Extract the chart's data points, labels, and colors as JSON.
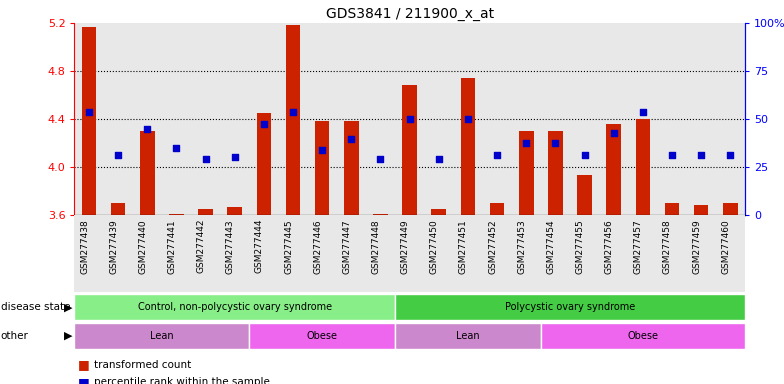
{
  "title": "GDS3841 / 211900_x_at",
  "samples": [
    "GSM277438",
    "GSM277439",
    "GSM277440",
    "GSM277441",
    "GSM277442",
    "GSM277443",
    "GSM277444",
    "GSM277445",
    "GSM277446",
    "GSM277447",
    "GSM277448",
    "GSM277449",
    "GSM277450",
    "GSM277451",
    "GSM277452",
    "GSM277453",
    "GSM277454",
    "GSM277455",
    "GSM277456",
    "GSM277457",
    "GSM277458",
    "GSM277459",
    "GSM277460"
  ],
  "bar_values": [
    5.17,
    3.7,
    4.3,
    3.61,
    3.65,
    3.67,
    4.45,
    5.18,
    4.38,
    4.38,
    3.61,
    4.68,
    3.65,
    4.74,
    3.7,
    4.3,
    4.3,
    3.93,
    4.36,
    4.4,
    3.7,
    3.68,
    3.7
  ],
  "percentile_values": [
    4.46,
    4.1,
    4.32,
    4.16,
    4.07,
    4.08,
    4.36,
    4.46,
    4.14,
    4.23,
    4.07,
    4.4,
    4.07,
    4.4,
    4.1,
    4.2,
    4.2,
    4.1,
    4.28,
    4.46,
    4.1,
    4.1,
    4.1
  ],
  "ymin": 3.6,
  "ymax": 5.2,
  "bar_color": "#cc2200",
  "dot_color": "#0000cc",
  "bg_color": "#e8e8e8",
  "disease_state_groups": [
    {
      "label": "Control, non-polycystic ovary syndrome",
      "start": 0,
      "end": 11,
      "color": "#88ee88"
    },
    {
      "label": "Polycystic ovary syndrome",
      "start": 11,
      "end": 23,
      "color": "#44cc44"
    }
  ],
  "other_groups": [
    {
      "label": "Lean",
      "start": 0,
      "end": 6,
      "color": "#cc88cc"
    },
    {
      "label": "Obese",
      "start": 6,
      "end": 11,
      "color": "#ee66ee"
    },
    {
      "label": "Lean",
      "start": 11,
      "end": 16,
      "color": "#cc88cc"
    },
    {
      "label": "Obese",
      "start": 16,
      "end": 23,
      "color": "#ee66ee"
    }
  ],
  "legend_red_label": "transformed count",
  "legend_blue_label": "percentile rank within the sample",
  "yticks_left": [
    3.6,
    4.0,
    4.4,
    4.8,
    5.2
  ],
  "yticks_right": [
    0,
    25,
    50,
    75,
    100
  ],
  "yticks_right_labels": [
    "0",
    "25",
    "50",
    "75",
    "100%"
  ],
  "gridlines": [
    4.0,
    4.4,
    4.8
  ]
}
